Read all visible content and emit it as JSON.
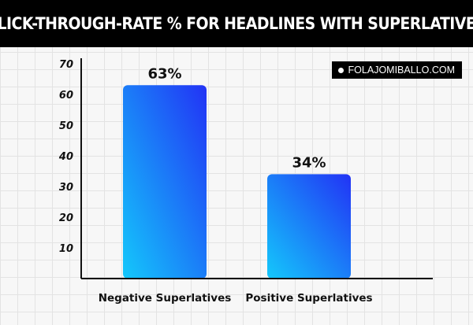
{
  "header": {
    "title": "CLICK-THROUGH-RATE % FOR HEADLINES WITH SUPERLATIVES"
  },
  "credit": {
    "text": "FOLAJOMIBALLO.COM"
  },
  "chart_data": {
    "type": "bar",
    "title": "CLICK-THROUGH-RATE % FOR HEADLINES WITH SUPERLATIVES",
    "categories": [
      "Negative Superlatives",
      "Positive Superlatives"
    ],
    "values": [
      63,
      34
    ],
    "data_labels": [
      "63%",
      "34%"
    ],
    "yticks": [
      10,
      20,
      30,
      40,
      50,
      60,
      70
    ],
    "ylim": [
      0,
      70
    ],
    "xlabel": "",
    "ylabel": "",
    "grid": true,
    "colors": {
      "bar_top": "#2233f5",
      "bar_bottom": "#14c8fb",
      "axis": "#111111"
    }
  }
}
